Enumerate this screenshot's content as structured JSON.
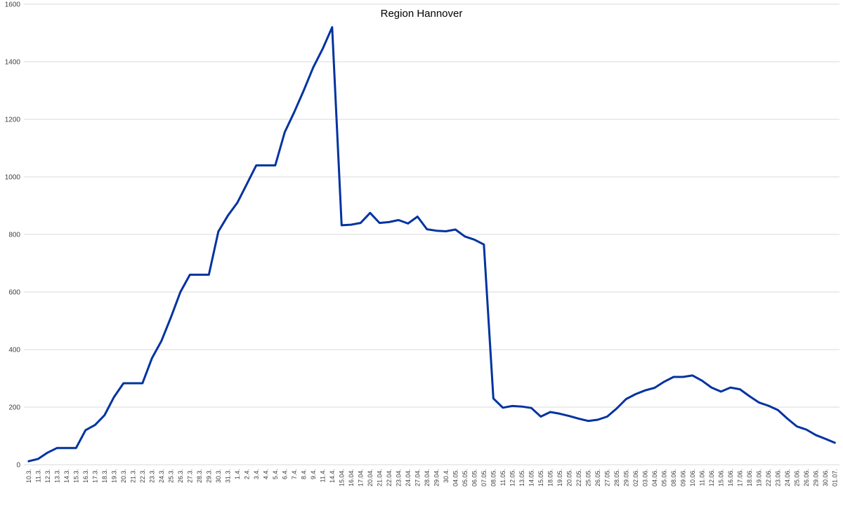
{
  "chart_data": {
    "type": "line",
    "title": "Region Hannover",
    "xlabel": "",
    "ylabel": "",
    "ylim": [
      0,
      1600
    ],
    "yticks": [
      0,
      200,
      400,
      600,
      800,
      1000,
      1200,
      1400,
      1600
    ],
    "grid": true,
    "legend": "none",
    "line_color": "#0033a0",
    "categories": [
      "10.3.",
      "11.3.",
      "12.3.",
      "13.3.",
      "14.3.",
      "15.3.",
      "16.3.",
      "17.3.",
      "18.3.",
      "19.3.",
      "20.3.",
      "21.3.",
      "22.3.",
      "23.3.",
      "24.3.",
      "25.3.",
      "26.3.",
      "27.3.",
      "28.3.",
      "29.3.",
      "30.3.",
      "31.3.",
      "1.4.",
      "2.4.",
      "3.4.",
      "4.4.",
      "5.4.",
      "6.4.",
      "7.4.",
      "8.4.",
      "9.4.",
      "11.4.",
      "14.4.",
      "15.04.",
      "16.04.",
      "17.04.",
      "20.04.",
      "21.04.",
      "22.04.",
      "23.04.",
      "24.04.",
      "27.04.",
      "28.04.",
      "29.04.",
      "30.4.",
      "04.05.",
      "05.05.",
      "06.05.",
      "07.05.",
      "08.05.",
      "11.05.",
      "12.05.",
      "13.05.",
      "14.05.",
      "15.05.",
      "18.05.",
      "19.05.",
      "20.05.",
      "22.05.",
      "25.05.",
      "26.05.",
      "27.05.",
      "28.05.",
      "29.05.",
      "02.06.",
      "03.06.",
      "04.06.",
      "05.06.",
      "08.06.",
      "09.06.",
      "10.06.",
      "11.06.",
      "12.06.",
      "15.06.",
      "16.06.",
      "17.06.",
      "18.06.",
      "19.06.",
      "22.06.",
      "23.06.",
      "24.06.",
      "25.06.",
      "26.06.",
      "29.06.",
      "30.06.",
      "01.07."
    ],
    "series": [
      {
        "values": [
          12,
          20,
          42,
          58,
          58,
          58,
          120,
          138,
          172,
          235,
          283,
          283,
          283,
          370,
          430,
          512,
          600,
          660,
          660,
          660,
          810,
          865,
          910,
          975,
          1040,
          1040,
          1040,
          1155,
          1225,
          1300,
          1380,
          1445,
          1520,
          832,
          834,
          840,
          875,
          840,
          843,
          850,
          838,
          862,
          818,
          813,
          811,
          817,
          793,
          782,
          765,
          230,
          198,
          204,
          202,
          197,
          167,
          183,
          177,
          169,
          160,
          152,
          156,
          167,
          195,
          228,
          245,
          258,
          267,
          288,
          305,
          305,
          310,
          292,
          268,
          254,
          268,
          262,
          238,
          216,
          205,
          190,
          160,
          133,
          122,
          103,
          90,
          76
        ]
      }
    ]
  }
}
